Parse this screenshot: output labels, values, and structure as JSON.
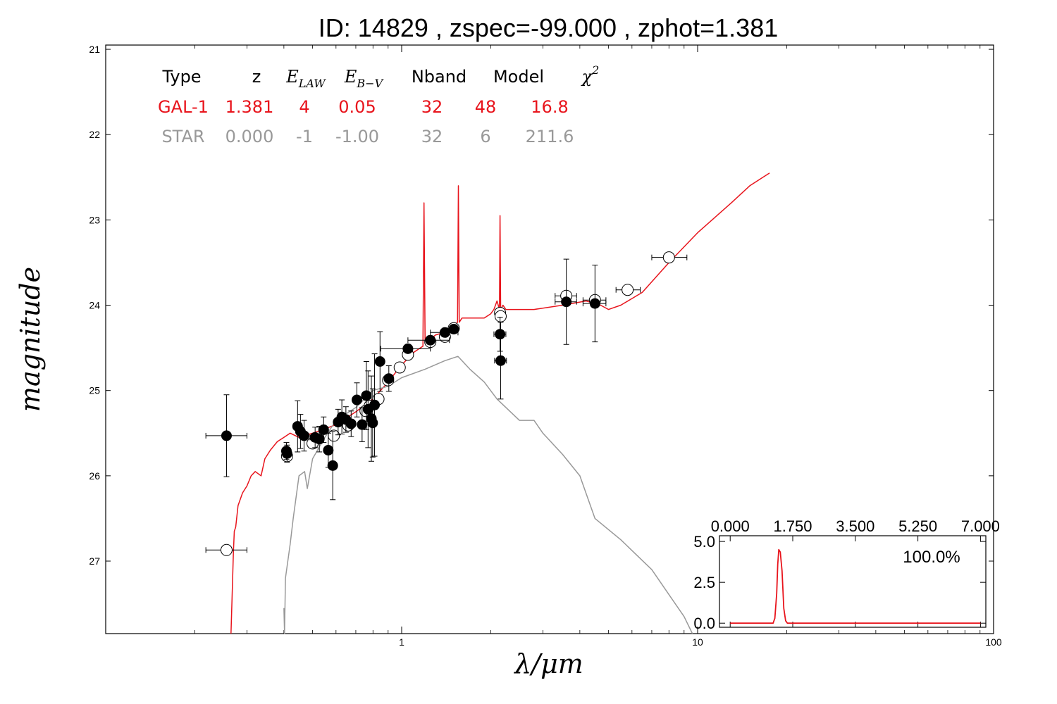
{
  "title": "ID:  14829 , zspec=-99.000 , zphot=1.381",
  "colors": {
    "galaxy": "#e8141c",
    "star": "#999999",
    "points": "#000000",
    "axes": "#000000"
  },
  "fit_table": {
    "headers": [
      "Type",
      "z",
      "E_LAW",
      "E_B−V",
      "Nband",
      "Model",
      "χ²"
    ],
    "rows": [
      {
        "color": "#e8141c",
        "cells": [
          "GAL-1",
          "1.381",
          "4",
          "0.05",
          "32",
          "48",
          "16.8"
        ]
      },
      {
        "color": "#999999",
        "cells": [
          "STAR",
          "0.000",
          "-1",
          "-1.00",
          "32",
          "6",
          "211.6"
        ]
      }
    ]
  },
  "chart_data": [
    {
      "type": "scatter",
      "title": "ID:  14829 , zspec=-99.000 , zphot=1.381",
      "xlabel": "λ/μm",
      "ylabel": "magnitude",
      "xscale": "log",
      "xlim": [
        0.1,
        100
      ],
      "ylim": [
        27.85,
        20.95
      ],
      "x_ticks": [
        1,
        10,
        100
      ],
      "x_tick_labels": [
        "1",
        "10",
        "100"
      ],
      "y_ticks": [
        21,
        22,
        23,
        24,
        25,
        26,
        27
      ],
      "y_tick_labels": [
        "21",
        "22",
        "23",
        "24",
        "25",
        "26",
        "27"
      ],
      "grid": false,
      "series": [
        {
          "kind": "observed",
          "marker": "filled-circle",
          "points": [
            {
              "x": 0.256,
              "y": 25.53,
              "xerr": [
                0.218,
                0.3
              ],
              "yerr": 0.48
            },
            {
              "x": 0.408,
              "y": 25.71,
              "xerr": [
                0.395,
                0.42
              ],
              "yerr": 0.1
            },
            {
              "x": 0.41,
              "y": 25.74,
              "xerr": [
                0.397,
                0.423
              ],
              "yerr": 0.1
            },
            {
              "x": 0.445,
              "y": 25.42,
              "xerr": [
                0.43,
                0.46
              ],
              "yerr": 0.3
            },
            {
              "x": 0.455,
              "y": 25.48,
              "xerr": [
                0.44,
                0.47
              ],
              "yerr": 0.2
            },
            {
              "x": 0.468,
              "y": 25.53,
              "xerr": [
                0.45,
                0.485
              ],
              "yerr": 0.18
            },
            {
              "x": 0.51,
              "y": 25.55,
              "xerr": [
                0.49,
                0.53
              ],
              "yerr": 0.12
            },
            {
              "x": 0.527,
              "y": 25.57,
              "xerr": [
                0.51,
                0.545
              ],
              "yerr": 0.15
            },
            {
              "x": 0.545,
              "y": 25.46,
              "xerr": [
                0.525,
                0.565
              ],
              "yerr": 0.15
            },
            {
              "x": 0.565,
              "y": 25.7,
              "xerr": [
                0.55,
                0.58
              ],
              "yerr": 0.2
            },
            {
              "x": 0.585,
              "y": 25.88,
              "xerr": [
                0.57,
                0.6
              ],
              "yerr": 0.4
            },
            {
              "x": 0.61,
              "y": 25.37,
              "xerr": [
                0.59,
                0.63
              ],
              "yerr": 0.15
            },
            {
              "x": 0.628,
              "y": 25.31,
              "xerr": [
                0.61,
                0.645
              ],
              "yerr": 0.2
            },
            {
              "x": 0.648,
              "y": 25.34,
              "xerr": [
                0.63,
                0.665
              ],
              "yerr": 0.15
            },
            {
              "x": 0.675,
              "y": 25.39,
              "xerr": [
                0.655,
                0.695
              ],
              "yerr": 0.15
            },
            {
              "x": 0.706,
              "y": 25.11,
              "xerr": [
                0.685,
                0.725
              ],
              "yerr": 0.2
            },
            {
              "x": 0.735,
              "y": 25.4,
              "xerr": [
                0.715,
                0.755
              ],
              "yerr": 0.2
            },
            {
              "x": 0.76,
              "y": 25.06,
              "xerr": [
                0.74,
                0.78
              ],
              "yerr": 0.4
            },
            {
              "x": 0.77,
              "y": 25.22,
              "xerr": [
                0.75,
                0.79
              ],
              "yerr": 0.45
            },
            {
              "x": 0.79,
              "y": 25.33,
              "xerr": [
                0.77,
                0.81
              ],
              "yerr": 0.5
            },
            {
              "x": 0.798,
              "y": 25.38,
              "xerr": [
                0.78,
                0.815
              ],
              "yerr": 0.4
            },
            {
              "x": 0.81,
              "y": 25.17,
              "xerr": [
                0.79,
                0.83
              ],
              "yerr": 0.6
            },
            {
              "x": 0.845,
              "y": 24.66,
              "xerr": [
                0.83,
                0.86
              ],
              "yerr": 0.35
            },
            {
              "x": 0.905,
              "y": 24.86,
              "xerr": [
                0.88,
                0.93
              ],
              "yerr": 0.15
            },
            {
              "x": 1.05,
              "y": 24.51,
              "xerr": [
                0.85,
                1.25
              ],
              "yerr": 0.05
            },
            {
              "x": 1.25,
              "y": 24.41,
              "xerr": [
                1.05,
                1.45
              ],
              "yerr": 0.05
            },
            {
              "x": 1.4,
              "y": 24.32,
              "xerr": [
                1.25,
                1.55
              ],
              "yerr": 0.05
            },
            {
              "x": 1.5,
              "y": 24.28,
              "xerr": [
                1.45,
                1.55
              ],
              "yerr": 0.05
            },
            {
              "x": 2.15,
              "y": 24.34,
              "xerr": [
                2.05,
                2.25
              ],
              "yerr": 0.2
            },
            {
              "x": 2.16,
              "y": 24.65,
              "xerr": [
                2.06,
                2.26
              ],
              "yerr": 0.45
            },
            {
              "x": 3.6,
              "y": 23.96,
              "xerr": [
                3.3,
                3.9
              ],
              "yerr": 0.5
            },
            {
              "x": 4.5,
              "y": 23.98,
              "xerr": [
                4.1,
                4.9
              ],
              "yerr": 0.45
            }
          ]
        },
        {
          "kind": "model-magnitudes",
          "marker": "open-circle",
          "points": [
            {
              "x": 0.256,
              "y": 26.87,
              "xerr": [
                0.218,
                0.3
              ]
            },
            {
              "x": 0.41,
              "y": 25.77
            },
            {
              "x": 0.5,
              "y": 25.62
            },
            {
              "x": 0.59,
              "y": 25.53
            },
            {
              "x": 0.66,
              "y": 25.41
            },
            {
              "x": 0.755,
              "y": 25.24
            },
            {
              "x": 0.78,
              "y": 25.18
            },
            {
              "x": 0.835,
              "y": 25.1
            },
            {
              "x": 0.9,
              "y": 24.88
            },
            {
              "x": 0.985,
              "y": 24.73
            },
            {
              "x": 1.05,
              "y": 24.58
            },
            {
              "x": 1.25,
              "y": 24.43
            },
            {
              "x": 1.4,
              "y": 24.37
            },
            {
              "x": 1.5,
              "y": 24.27
            },
            {
              "x": 2.15,
              "y": 24.09
            },
            {
              "x": 2.16,
              "y": 24.13
            },
            {
              "x": 3.6,
              "y": 23.89,
              "xerr": [
                3.3,
                3.9
              ]
            },
            {
              "x": 4.5,
              "y": 23.94,
              "xerr": [
                4.1,
                4.9
              ]
            },
            {
              "x": 5.8,
              "y": 23.82,
              "xerr": [
                5.3,
                6.4
              ]
            },
            {
              "x": 8.0,
              "y": 23.44,
              "xerr": [
                7.0,
                9.2
              ]
            }
          ]
        },
        {
          "kind": "galaxy-template",
          "name": "GAL-1",
          "line": true,
          "x": [
            0.265,
            0.268,
            0.27,
            0.272,
            0.275,
            0.28,
            0.29,
            0.3,
            0.31,
            0.32,
            0.335,
            0.345,
            0.36,
            0.38,
            0.4,
            0.42,
            0.45,
            0.5,
            0.55,
            0.6,
            0.7,
            0.8,
            0.9,
            1.0,
            1.1,
            1.18,
            1.19,
            1.2,
            1.3,
            1.45,
            1.5,
            1.545,
            1.555,
            1.565,
            1.6,
            1.75,
            1.9,
            2.0,
            2.05,
            2.1,
            2.14,
            2.15,
            2.16,
            2.2,
            2.25,
            2.4,
            2.8,
            3.5,
            4.2,
            4.7,
            5.0,
            5.5,
            6.5,
            8.0,
            10.0,
            13.0,
            15.0,
            17.5
          ],
          "y": [
            27.85,
            27.3,
            26.9,
            26.65,
            26.6,
            26.35,
            26.2,
            26.12,
            26.0,
            25.95,
            26.0,
            25.8,
            25.7,
            25.6,
            25.55,
            25.5,
            25.55,
            25.5,
            25.45,
            25.4,
            25.25,
            25.1,
            24.9,
            24.7,
            24.55,
            24.48,
            22.8,
            24.45,
            24.35,
            24.3,
            24.25,
            24.2,
            22.6,
            24.2,
            24.15,
            24.15,
            24.15,
            24.1,
            24.05,
            23.95,
            24.05,
            22.95,
            24.05,
            24.0,
            24.05,
            24.05,
            24.05,
            24.0,
            23.95,
            24.0,
            24.05,
            24.0,
            23.85,
            23.5,
            23.15,
            22.8,
            22.6,
            22.45
          ]
        },
        {
          "kind": "star-template",
          "name": "STAR",
          "line": true,
          "x": [
            0.4,
            0.402,
            0.405,
            0.42,
            0.43,
            0.45,
            0.47,
            0.48,
            0.5,
            0.55,
            0.6,
            0.7,
            0.8,
            0.9,
            1.0,
            1.2,
            1.4,
            1.55,
            1.7,
            1.9,
            2.1,
            2.5,
            2.8,
            3.0,
            3.5,
            4.0,
            4.5,
            5.5,
            7.0,
            9.0,
            9.6
          ],
          "y": [
            27.55,
            27.85,
            27.2,
            26.8,
            26.5,
            26.0,
            25.95,
            26.15,
            25.8,
            25.55,
            25.35,
            25.2,
            25.0,
            24.95,
            24.85,
            24.75,
            24.65,
            24.6,
            24.75,
            24.9,
            25.1,
            25.35,
            25.35,
            25.5,
            25.75,
            26.0,
            26.5,
            26.75,
            27.1,
            27.65,
            27.85
          ]
        }
      ]
    },
    {
      "type": "line",
      "title": "",
      "xlabel": "",
      "ylabel": "",
      "xlim": [
        -0.3,
        7.15
      ],
      "ylim": [
        -0.25,
        5.35
      ],
      "x_ticks": [
        0,
        1.75,
        3.5,
        5.25,
        7
      ],
      "x_tick_labels": [
        "0.000",
        "1.750",
        "3.500",
        "5.250",
        "7.000"
      ],
      "y_ticks": [
        0,
        2.5,
        5
      ],
      "y_tick_labels": [
        "0.0",
        "2.5",
        "5.0"
      ],
      "annotation": "100.0%",
      "grid": false,
      "series": [
        {
          "name": "",
          "x": [
            0.0,
            1.2,
            1.25,
            1.3,
            1.33,
            1.36,
            1.4,
            1.45,
            1.5,
            1.55,
            1.6,
            7.0
          ],
          "y": [
            0.0,
            0.0,
            0.3,
            1.8,
            3.6,
            4.5,
            4.35,
            3.2,
            0.9,
            0.15,
            0.0,
            0.0
          ]
        }
      ]
    }
  ]
}
